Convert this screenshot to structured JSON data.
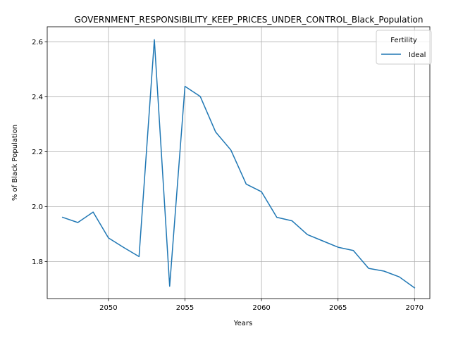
{
  "chart_data": {
    "type": "line",
    "title": "GOVERNMENT_RESPONSIBILITY_KEEP_PRICES_UNDER_CONTROL_Black_Population",
    "xlabel": "Years",
    "ylabel": "% of Black Population",
    "xlim": [
      2046,
      2071
    ],
    "ylim": [
      1.665,
      2.655
    ],
    "xticks": [
      2050,
      2055,
      2060,
      2065,
      2070
    ],
    "yticks": [
      1.8,
      2.0,
      2.2,
      2.4,
      2.6
    ],
    "ytick_labels": [
      "1.8",
      "2.0",
      "2.2",
      "2.4",
      "2.6"
    ],
    "grid": true,
    "legend": {
      "title": "Fertility",
      "placement": "top-right"
    },
    "series": [
      {
        "name": "Ideal",
        "color": "#1f77b4",
        "x": [
          2047,
          2048,
          2049,
          2050,
          2051,
          2052,
          2053,
          2054,
          2055,
          2056,
          2057,
          2058,
          2059,
          2060,
          2061,
          2062,
          2063,
          2064,
          2065,
          2066,
          2067,
          2068,
          2069,
          2070
        ],
        "values": [
          1.961,
          1.942,
          1.98,
          1.886,
          1.851,
          1.818,
          2.608,
          1.71,
          2.438,
          2.401,
          2.272,
          2.206,
          2.082,
          2.054,
          1.961,
          1.948,
          1.898,
          1.875,
          1.852,
          1.84,
          1.775,
          1.765,
          1.744,
          1.704
        ]
      }
    ]
  }
}
